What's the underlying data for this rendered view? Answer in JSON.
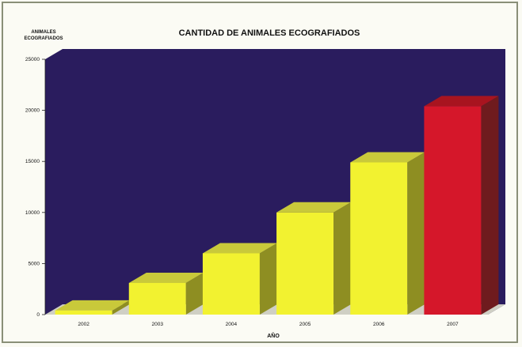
{
  "chart_data": {
    "type": "bar",
    "title": "CANTIDAD DE ANIMALES ECOGRAFIADOS",
    "ylabel": "ANIMALES ECOGRAFIADOS",
    "ylabel_lines": [
      "ANIMALES",
      "ECOGRAFIADOS"
    ],
    "xlabel": "AÑO",
    "categories": [
      "2002",
      "2003",
      "2004",
      "2005",
      "2006",
      "2007"
    ],
    "values": [
      400,
      3100,
      6000,
      10000,
      14900,
      20400
    ],
    "ylim": [
      0,
      25000
    ],
    "yticks": [
      "0",
      "5000",
      "10000",
      "15000",
      "20000",
      "25000"
    ],
    "ytick_values": [
      0,
      5000,
      10000,
      15000,
      20000,
      25000
    ],
    "grid": false,
    "style": "3d",
    "colors": {
      "plot_background": "#2a1c5e",
      "bar_front": "#f2f230",
      "bar_top": "#c9c93a",
      "bar_side": "#8e8e22",
      "highlight_front": "#d5172a",
      "highlight_top": "#a8141f",
      "highlight_side": "#6f1b1e",
      "floor": "#cfcfc4"
    },
    "highlight_index": 5
  }
}
